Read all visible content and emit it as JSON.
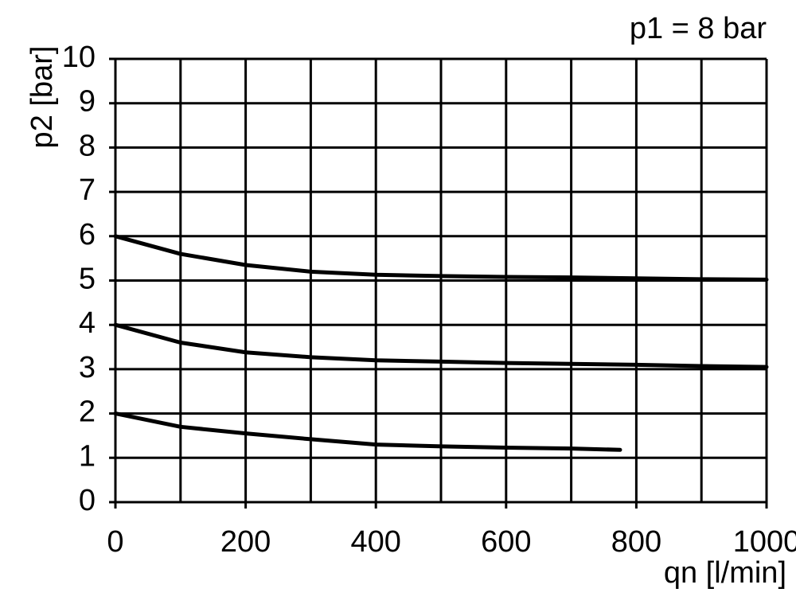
{
  "chart_data": {
    "type": "line",
    "annotation": "p1 = 8 bar",
    "x_label": "qn [l/min]",
    "y_label": "p2 [bar]",
    "xlim": [
      0,
      1000
    ],
    "ylim": [
      0,
      10
    ],
    "xticks": [
      0,
      200,
      400,
      600,
      800,
      1000
    ],
    "xgrid_minor": [
      100,
      300,
      500,
      700,
      900
    ],
    "yticks": [
      0,
      1,
      2,
      3,
      4,
      5,
      6,
      7,
      8,
      9,
      10
    ],
    "grid": true,
    "series": [
      {
        "color": "#000000",
        "x": [
          0,
          100,
          200,
          300,
          400,
          500,
          600,
          700,
          800,
          900,
          1000
        ],
        "values": [
          6.0,
          5.6,
          5.35,
          5.2,
          5.13,
          5.1,
          5.08,
          5.07,
          5.05,
          5.03,
          5.02
        ]
      },
      {
        "color": "#000000",
        "x": [
          0,
          100,
          200,
          300,
          400,
          500,
          600,
          700,
          800,
          900,
          1000
        ],
        "values": [
          4.0,
          3.6,
          3.38,
          3.27,
          3.2,
          3.17,
          3.14,
          3.12,
          3.1,
          3.07,
          3.05
        ]
      },
      {
        "color": "#000000",
        "x": [
          0,
          100,
          200,
          300,
          400,
          500,
          600,
          700,
          775
        ],
        "values": [
          2.0,
          1.7,
          1.55,
          1.42,
          1.3,
          1.26,
          1.23,
          1.21,
          1.18
        ]
      }
    ]
  }
}
